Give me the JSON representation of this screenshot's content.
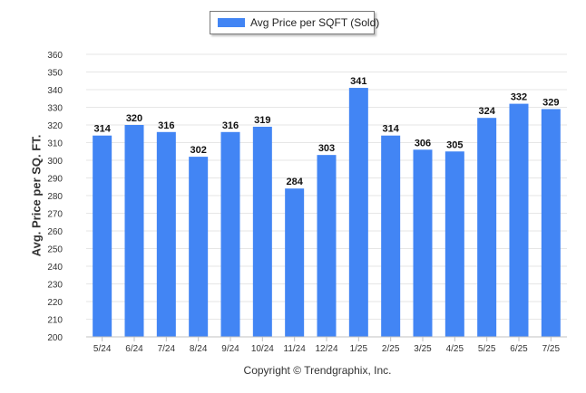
{
  "chart_data": {
    "type": "bar",
    "categories": [
      "5/24",
      "6/24",
      "7/24",
      "8/24",
      "9/24",
      "10/24",
      "11/24",
      "12/24",
      "1/25",
      "2/25",
      "3/25",
      "4/25",
      "5/25",
      "6/25",
      "7/25"
    ],
    "series": [
      {
        "name": "Avg Price per SQFT (Sold)",
        "values": [
          314,
          320,
          316,
          302,
          316,
          319,
          284,
          303,
          341,
          314,
          306,
          305,
          324,
          332,
          329
        ],
        "color": "#4285f4"
      }
    ],
    "xlabel": "",
    "ylabel": "Avg. Price per SQ. FT.",
    "ylim": [
      200,
      360
    ],
    "yticks": [
      200,
      210,
      220,
      230,
      240,
      250,
      260,
      270,
      280,
      290,
      300,
      310,
      320,
      330,
      340,
      350,
      360
    ],
    "grid": true,
    "legend": "top-center",
    "data_labels": true
  },
  "footer": {
    "copyright": "Copyright © Trendgraphix, Inc."
  }
}
